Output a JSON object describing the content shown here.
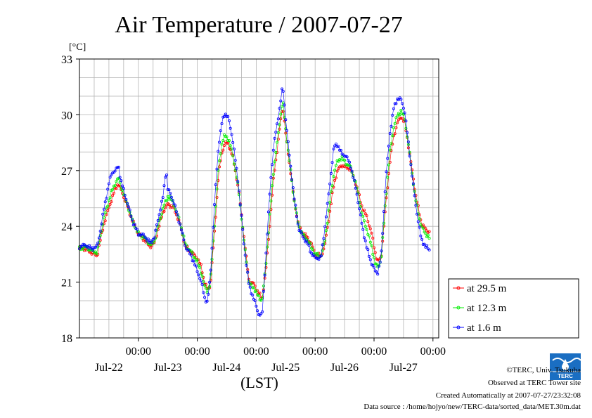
{
  "chart_data": {
    "type": "line",
    "title": "Air Temperature / 2007-07-27",
    "ylabel": "[°C]",
    "xlabel": "(LST)",
    "ylim": [
      18,
      33
    ],
    "yticks": [
      18,
      21,
      24,
      27,
      30,
      33
    ],
    "xlim_days": [
      0,
      6.1
    ],
    "xticks": [
      {
        "time": "00:00",
        "date": "Jul-22"
      },
      {
        "time": "00:00",
        "date": "Jul-23"
      },
      {
        "time": "00:00",
        "date": "Jul-24"
      },
      {
        "time": "00:00",
        "date": "Jul-25"
      },
      {
        "time": "00:00",
        "date": "Jul-26"
      },
      {
        "time": "00:00",
        "date": "Jul-27"
      }
    ],
    "legend_position": "right",
    "grid": true,
    "series": [
      {
        "name": "at 29.5 m",
        "color": "#ff0000",
        "points": [
          [
            0,
            22.8
          ],
          [
            0.1,
            22.8
          ],
          [
            0.2,
            22.6
          ],
          [
            0.3,
            22.4
          ],
          [
            0.35,
            23.2
          ],
          [
            0.42,
            24.2
          ],
          [
            0.5,
            25.0
          ],
          [
            0.55,
            25.5
          ],
          [
            0.62,
            26.1
          ],
          [
            0.66,
            26.3
          ],
          [
            0.7,
            26.0
          ],
          [
            0.8,
            25.2
          ],
          [
            0.9,
            24.3
          ],
          [
            1.0,
            23.6
          ],
          [
            1.1,
            23.3
          ],
          [
            1.2,
            22.9
          ],
          [
            1.27,
            23.1
          ],
          [
            1.35,
            24.0
          ],
          [
            1.42,
            24.8
          ],
          [
            1.5,
            25.2
          ],
          [
            1.55,
            25.1
          ],
          [
            1.6,
            25.0
          ],
          [
            1.7,
            24.2
          ],
          [
            1.8,
            22.9
          ],
          [
            1.9,
            22.6
          ],
          [
            2.0,
            22.3
          ],
          [
            2.07,
            21.8
          ],
          [
            2.12,
            21.0
          ],
          [
            2.17,
            20.6
          ],
          [
            2.22,
            20.8
          ],
          [
            2.3,
            24.0
          ],
          [
            2.36,
            26.8
          ],
          [
            2.42,
            28.0
          ],
          [
            2.47,
            28.5
          ],
          [
            2.53,
            28.4
          ],
          [
            2.6,
            27.8
          ],
          [
            2.7,
            26.0
          ],
          [
            2.8,
            23.2
          ],
          [
            2.88,
            21.0
          ],
          [
            2.96,
            20.9
          ],
          [
            3.04,
            20.4
          ],
          [
            3.1,
            20.1
          ],
          [
            3.16,
            21.5
          ],
          [
            3.24,
            24.5
          ],
          [
            3.3,
            26.8
          ],
          [
            3.36,
            28.2
          ],
          [
            3.41,
            29.6
          ],
          [
            3.45,
            30.5
          ],
          [
            3.5,
            29.0
          ],
          [
            3.56,
            27.5
          ],
          [
            3.64,
            25.5
          ],
          [
            3.72,
            24.0
          ],
          [
            3.8,
            23.6
          ],
          [
            3.87,
            23.4
          ],
          [
            3.93,
            23.1
          ],
          [
            4.0,
            22.5
          ],
          [
            4.1,
            22.4
          ],
          [
            4.16,
            22.9
          ],
          [
            4.25,
            24.8
          ],
          [
            4.32,
            26.3
          ],
          [
            4.38,
            27.0
          ],
          [
            4.45,
            27.3
          ],
          [
            4.52,
            27.2
          ],
          [
            4.6,
            27.1
          ],
          [
            4.7,
            26.2
          ],
          [
            4.8,
            25.0
          ],
          [
            4.88,
            24.5
          ],
          [
            4.96,
            23.6
          ],
          [
            5.02,
            22.6
          ],
          [
            5.06,
            22.1
          ],
          [
            5.12,
            22.3
          ],
          [
            5.2,
            25.2
          ],
          [
            5.27,
            27.5
          ],
          [
            5.33,
            28.8
          ],
          [
            5.4,
            29.6
          ],
          [
            5.46,
            29.9
          ],
          [
            5.52,
            29.6
          ],
          [
            5.6,
            28.0
          ],
          [
            5.7,
            25.8
          ],
          [
            5.8,
            24.2
          ],
          [
            5.88,
            23.8
          ],
          [
            5.95,
            23.7
          ]
        ]
      },
      {
        "name": "at 12.3 m",
        "color": "#00ee00",
        "points": [
          [
            0,
            22.8
          ],
          [
            0.1,
            22.9
          ],
          [
            0.2,
            22.7
          ],
          [
            0.3,
            22.6
          ],
          [
            0.35,
            23.4
          ],
          [
            0.42,
            24.5
          ],
          [
            0.5,
            25.4
          ],
          [
            0.55,
            25.9
          ],
          [
            0.62,
            26.4
          ],
          [
            0.66,
            26.6
          ],
          [
            0.7,
            26.2
          ],
          [
            0.8,
            25.3
          ],
          [
            0.9,
            24.3
          ],
          [
            1.0,
            23.6
          ],
          [
            1.1,
            23.4
          ],
          [
            1.2,
            23.0
          ],
          [
            1.27,
            23.2
          ],
          [
            1.35,
            24.2
          ],
          [
            1.42,
            25.0
          ],
          [
            1.5,
            25.6
          ],
          [
            1.55,
            25.5
          ],
          [
            1.6,
            25.2
          ],
          [
            1.7,
            24.3
          ],
          [
            1.8,
            23.0
          ],
          [
            1.9,
            22.6
          ],
          [
            2.0,
            22.1
          ],
          [
            2.07,
            21.5
          ],
          [
            2.12,
            20.8
          ],
          [
            2.17,
            20.5
          ],
          [
            2.22,
            20.9
          ],
          [
            2.3,
            24.5
          ],
          [
            2.36,
            27.2
          ],
          [
            2.42,
            28.5
          ],
          [
            2.47,
            28.9
          ],
          [
            2.53,
            28.7
          ],
          [
            2.6,
            27.9
          ],
          [
            2.7,
            26.0
          ],
          [
            2.8,
            23.0
          ],
          [
            2.88,
            20.9
          ],
          [
            2.96,
            20.7
          ],
          [
            3.04,
            20.2
          ],
          [
            3.1,
            20.0
          ],
          [
            3.16,
            21.8
          ],
          [
            3.24,
            25.0
          ],
          [
            3.3,
            27.2
          ],
          [
            3.36,
            28.6
          ],
          [
            3.41,
            29.9
          ],
          [
            3.45,
            30.8
          ],
          [
            3.5,
            29.2
          ],
          [
            3.56,
            27.6
          ],
          [
            3.64,
            25.5
          ],
          [
            3.72,
            24.0
          ],
          [
            3.8,
            23.5
          ],
          [
            3.87,
            23.3
          ],
          [
            3.93,
            22.9
          ],
          [
            4.0,
            22.5
          ],
          [
            4.1,
            22.4
          ],
          [
            4.16,
            23.1
          ],
          [
            4.25,
            25.3
          ],
          [
            4.32,
            26.9
          ],
          [
            4.38,
            27.5
          ],
          [
            4.45,
            27.7
          ],
          [
            4.52,
            27.4
          ],
          [
            4.6,
            27.2
          ],
          [
            4.7,
            26.2
          ],
          [
            4.8,
            24.6
          ],
          [
            4.88,
            23.8
          ],
          [
            4.96,
            22.9
          ],
          [
            5.02,
            22.0
          ],
          [
            5.06,
            21.8
          ],
          [
            5.12,
            22.2
          ],
          [
            5.2,
            25.6
          ],
          [
            5.27,
            28.0
          ],
          [
            5.33,
            29.3
          ],
          [
            5.4,
            30.0
          ],
          [
            5.46,
            30.2
          ],
          [
            5.52,
            29.8
          ],
          [
            5.6,
            28.0
          ],
          [
            5.7,
            25.5
          ],
          [
            5.8,
            24.0
          ],
          [
            5.88,
            23.6
          ],
          [
            5.95,
            23.3
          ]
        ]
      },
      {
        "name": "at 1.6 m",
        "color": "#0000ff",
        "points": [
          [
            0,
            22.9
          ],
          [
            0.1,
            23.0
          ],
          [
            0.2,
            22.8
          ],
          [
            0.3,
            22.9
          ],
          [
            0.35,
            23.7
          ],
          [
            0.42,
            25.0
          ],
          [
            0.5,
            26.3
          ],
          [
            0.55,
            26.9
          ],
          [
            0.62,
            27.0
          ],
          [
            0.66,
            27.3
          ],
          [
            0.7,
            26.5
          ],
          [
            0.8,
            25.4
          ],
          [
            0.9,
            24.3
          ],
          [
            1.0,
            23.6
          ],
          [
            1.1,
            23.5
          ],
          [
            1.2,
            23.1
          ],
          [
            1.27,
            23.4
          ],
          [
            1.35,
            24.6
          ],
          [
            1.42,
            25.6
          ],
          [
            1.47,
            27.1
          ],
          [
            1.5,
            26.0
          ],
          [
            1.55,
            25.7
          ],
          [
            1.6,
            25.3
          ],
          [
            1.7,
            24.2
          ],
          [
            1.8,
            22.9
          ],
          [
            1.9,
            22.4
          ],
          [
            2.0,
            21.6
          ],
          [
            2.07,
            21.0
          ],
          [
            2.12,
            20.2
          ],
          [
            2.17,
            19.9
          ],
          [
            2.22,
            21.2
          ],
          [
            2.3,
            25.6
          ],
          [
            2.36,
            28.3
          ],
          [
            2.42,
            29.6
          ],
          [
            2.47,
            30.1
          ],
          [
            2.53,
            29.8
          ],
          [
            2.6,
            28.7
          ],
          [
            2.7,
            26.2
          ],
          [
            2.8,
            22.8
          ],
          [
            2.88,
            20.8
          ],
          [
            2.96,
            20.1
          ],
          [
            3.04,
            19.3
          ],
          [
            3.1,
            19.2
          ],
          [
            3.16,
            22.2
          ],
          [
            3.24,
            26.3
          ],
          [
            3.3,
            28.4
          ],
          [
            3.36,
            29.6
          ],
          [
            3.41,
            30.6
          ],
          [
            3.45,
            31.6
          ],
          [
            3.5,
            29.8
          ],
          [
            3.56,
            27.9
          ],
          [
            3.64,
            25.6
          ],
          [
            3.72,
            23.9
          ],
          [
            3.8,
            23.4
          ],
          [
            3.87,
            23.1
          ],
          [
            3.93,
            22.6
          ],
          [
            4.0,
            22.3
          ],
          [
            4.1,
            22.3
          ],
          [
            4.16,
            23.8
          ],
          [
            4.25,
            26.3
          ],
          [
            4.32,
            28.3
          ],
          [
            4.38,
            28.4
          ],
          [
            4.45,
            27.9
          ],
          [
            4.52,
            27.8
          ],
          [
            4.6,
            27.3
          ],
          [
            4.7,
            25.9
          ],
          [
            4.8,
            24.0
          ],
          [
            4.88,
            22.8
          ],
          [
            4.96,
            22.0
          ],
          [
            5.02,
            21.6
          ],
          [
            5.06,
            21.5
          ],
          [
            5.12,
            22.3
          ],
          [
            5.2,
            26.6
          ],
          [
            5.27,
            29.0
          ],
          [
            5.33,
            30.3
          ],
          [
            5.4,
            30.9
          ],
          [
            5.46,
            30.8
          ],
          [
            5.52,
            30.2
          ],
          [
            5.6,
            28.0
          ],
          [
            5.7,
            25.3
          ],
          [
            5.8,
            23.3
          ],
          [
            5.88,
            22.9
          ],
          [
            5.95,
            22.7
          ]
        ]
      }
    ]
  },
  "footer": {
    "credit": "©TERC, Univ. Tsukuba",
    "observed": "Observed at TERC Tower site",
    "created": "Created Automatically at 2007-07-27/23:32:08",
    "source": "Data source : /home/hojyo/new/TERC-data/sorted_data/MET.30m.dat",
    "logo_text": "TERC"
  }
}
